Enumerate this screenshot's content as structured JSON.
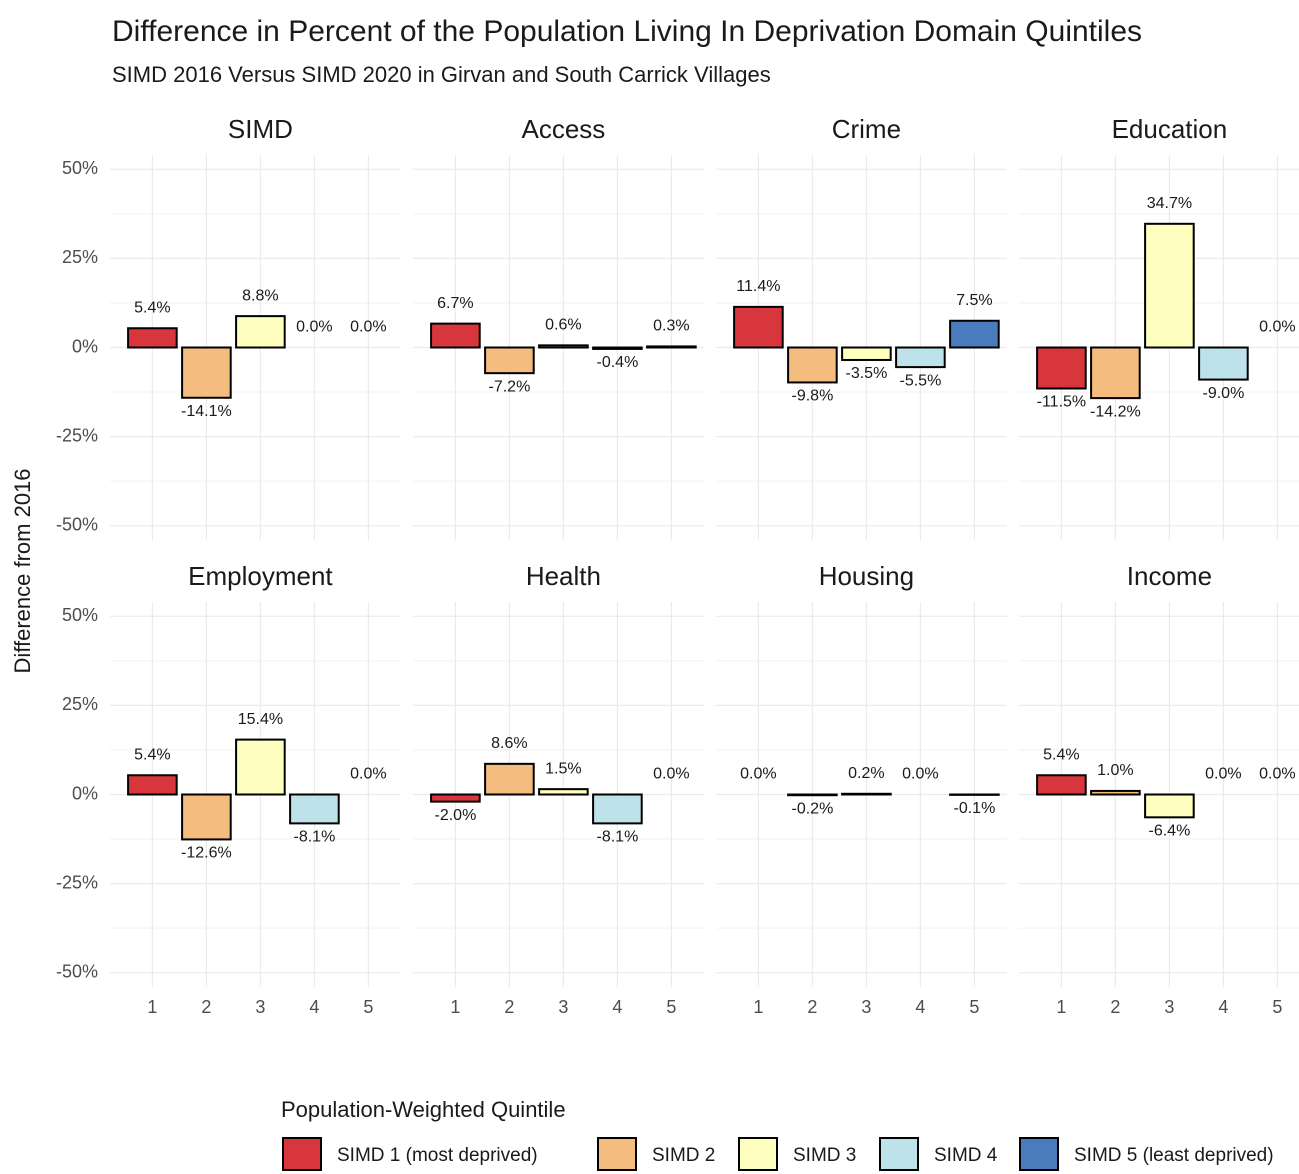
{
  "chart_data": {
    "type": "bar",
    "title": "Difference in Percent of the Population Living In Deprivation Domain Quintiles",
    "subtitle": "SIMD 2016 Versus SIMD 2020 in Girvan and South Carrick Villages",
    "y_label": "Difference from 2016",
    "legend_title": "Population-Weighted Quintile",
    "legend": [
      "SIMD 1 (most deprived)",
      "SIMD 2",
      "SIMD 3",
      "SIMD 4",
      "SIMD 5 (least deprived)"
    ],
    "colors": [
      "#d7373c",
      "#f5bc80",
      "#fefebe",
      "#bde2e9",
      "#4a7bbd"
    ],
    "categories": [
      "1",
      "2",
      "3",
      "4",
      "5"
    ],
    "ylim": [
      -54,
      54
    ],
    "yticks": [
      {
        "value": -50,
        "label": "-50%"
      },
      {
        "value": -25,
        "label": "-25%"
      },
      {
        "value": 0,
        "label": "0%"
      },
      {
        "value": 25,
        "label": "25%"
      },
      {
        "value": 50,
        "label": "50%"
      }
    ],
    "grid": true,
    "facets": [
      {
        "name": "SIMD",
        "values": [
          5.4,
          -14.1,
          8.8,
          0.0,
          0.0
        ],
        "value_labels": [
          "5.4%",
          "-14.1%",
          "8.8%",
          "0.0%",
          "0.0%"
        ]
      },
      {
        "name": "Access",
        "values": [
          6.7,
          -7.2,
          0.6,
          -0.4,
          0.3
        ],
        "value_labels": [
          "6.7%",
          "-7.2%",
          "0.6%",
          "-0.4%",
          "0.3%"
        ]
      },
      {
        "name": "Crime",
        "values": [
          11.4,
          -9.8,
          -3.5,
          -5.5,
          7.5
        ],
        "value_labels": [
          "11.4%",
          "-9.8%",
          "-3.5%",
          "-5.5%",
          "7.5%"
        ]
      },
      {
        "name": "Education",
        "values": [
          -11.5,
          -14.2,
          34.7,
          -9.0,
          0.0
        ],
        "value_labels": [
          "-11.5%",
          "-14.2%",
          "34.7%",
          "-9.0%",
          "0.0%"
        ]
      },
      {
        "name": "Employment",
        "values": [
          5.4,
          -12.6,
          15.4,
          -8.1,
          0.0
        ],
        "value_labels": [
          "5.4%",
          "-12.6%",
          "15.4%",
          "-8.1%",
          "0.0%"
        ]
      },
      {
        "name": "Health",
        "values": [
          -2.0,
          8.6,
          1.5,
          -8.1,
          0.0
        ],
        "value_labels": [
          "-2.0%",
          "8.6%",
          "1.5%",
          "-8.1%",
          "0.0%"
        ]
      },
      {
        "name": "Housing",
        "values": [
          0.0,
          -0.2,
          0.2,
          0.0,
          -0.1
        ],
        "value_labels": [
          "0.0%",
          "-0.2%",
          "0.2%",
          "0.0%",
          "-0.1%"
        ]
      },
      {
        "name": "Income",
        "values": [
          5.4,
          1.0,
          -6.4,
          0.0,
          0.0
        ],
        "value_labels": [
          "5.4%",
          "1.0%",
          "-6.4%",
          "0.0%",
          "0.0%"
        ]
      }
    ]
  }
}
